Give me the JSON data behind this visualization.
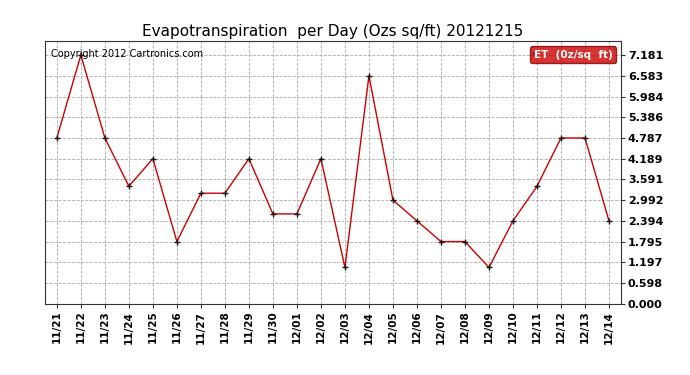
{
  "title": "Evapotranspiration  per Day (Ozs sq/ft) 20121215",
  "copyright": "Copyright 2012 Cartronics.com",
  "legend_label": "ET  (0z/sq  ft)",
  "dates": [
    "11/21",
    "11/22",
    "11/23",
    "11/24",
    "11/25",
    "11/26",
    "11/27",
    "11/28",
    "11/29",
    "11/30",
    "12/01",
    "12/02",
    "12/03",
    "12/04",
    "12/05",
    "12/06",
    "12/07",
    "12/08",
    "12/09",
    "12/10",
    "12/11",
    "12/12",
    "12/13",
    "12/14"
  ],
  "values": [
    4.787,
    7.181,
    4.787,
    3.392,
    4.189,
    1.795,
    3.192,
    3.192,
    4.189,
    2.594,
    2.594,
    4.189,
    1.048,
    6.583,
    2.992,
    2.394,
    1.795,
    1.795,
    1.048,
    2.394,
    3.392,
    4.787,
    4.787,
    2.394
  ],
  "yticks": [
    0.0,
    0.598,
    1.197,
    1.795,
    2.394,
    2.992,
    3.591,
    4.189,
    4.787,
    5.386,
    5.984,
    6.583,
    7.181
  ],
  "ylim": [
    0.0,
    7.58
  ],
  "line_color": "#cc0000",
  "marker_color": "#111111",
  "bg_color": "#ffffff",
  "grid_color": "#aaaaaa",
  "legend_bg": "#cc0000",
  "legend_text_color": "#ffffff",
  "title_fontsize": 11,
  "copyright_fontsize": 7,
  "ytick_fontsize": 8,
  "xtick_fontsize": 7.5
}
